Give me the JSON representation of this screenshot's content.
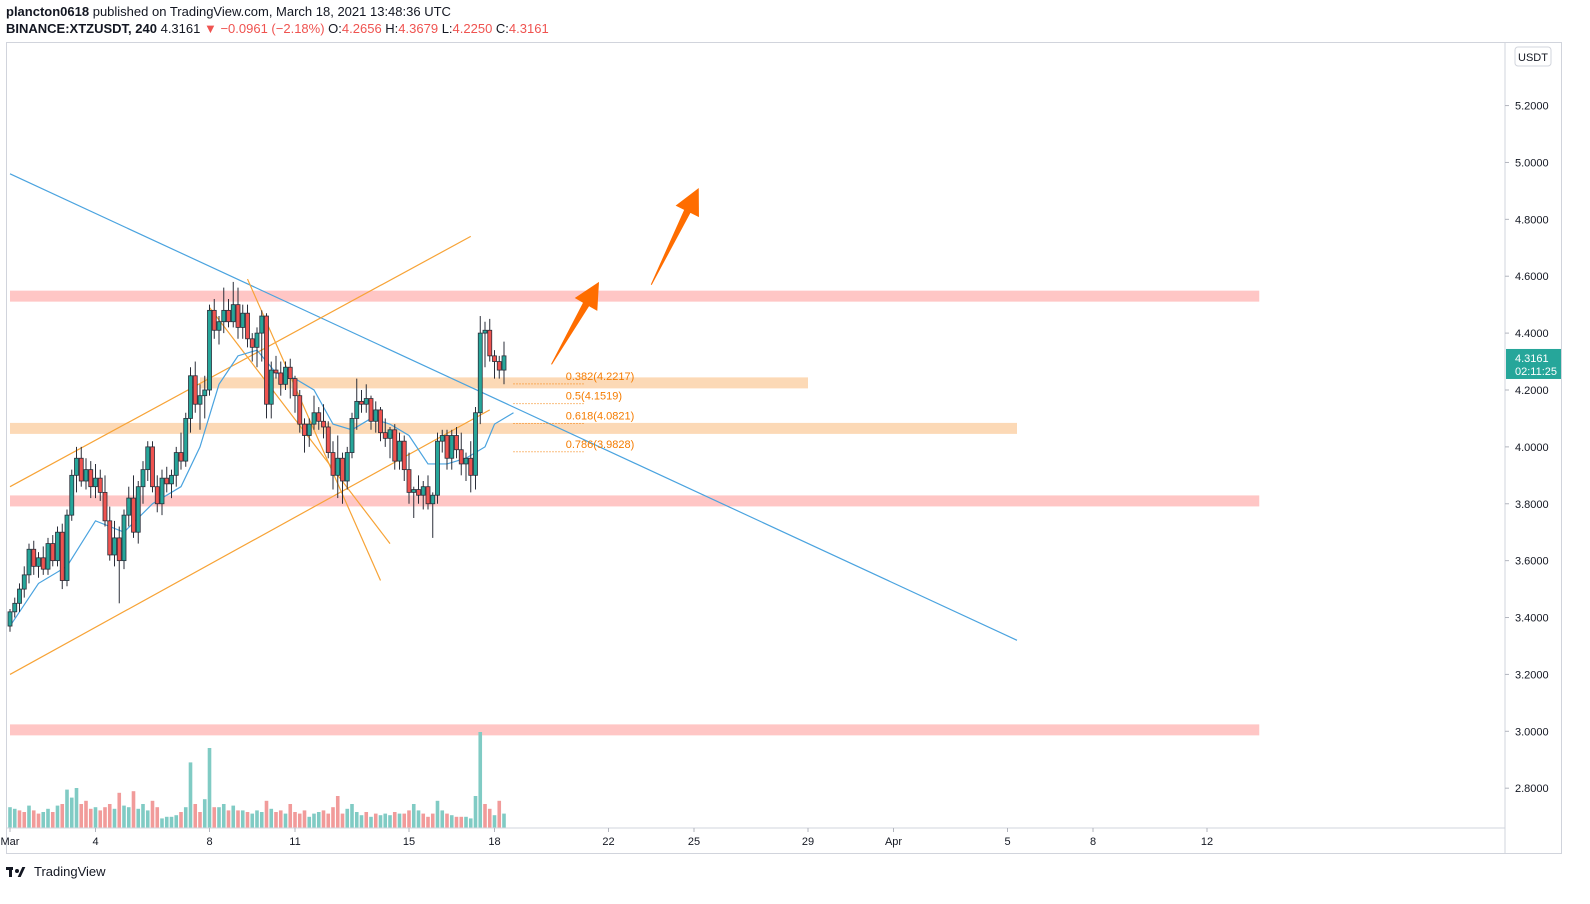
{
  "header": {
    "author": "plancton0618",
    "published_text": "published on TradingView.com, March 18, 2021 13:48:36 UTC",
    "symbol": "BINANCE:XTZUSDT, 240",
    "last": "4.3161",
    "change": "▼ −0.0961 (−2.18%)",
    "o_label": "O:",
    "o": "4.2656",
    "h_label": "H:",
    "h": "4.3679",
    "l_label": "L:",
    "l": "4.2250",
    "c_label": "C:",
    "c": "4.3161"
  },
  "price_axis": {
    "currency": "USDT",
    "current_price": "4.3161",
    "countdown": "02:11:25"
  },
  "footer": {
    "brand": "TradingView"
  },
  "colors": {
    "up": "#26a69a",
    "down": "#ef5350",
    "vol_up": "#80cbc4",
    "vol_down": "#f19b9a",
    "resistance": "#ffc6c5",
    "support": "#fcd9b6",
    "ma": "#4aa3df",
    "trend": "#4aa3df",
    "channel": "#f7a336",
    "arrow": "#ff6d00",
    "fib": "#f57c00"
  },
  "chart_data": {
    "type": "candlestick",
    "symbol": "BINANCE:XTZUSDT",
    "interval": "240",
    "y_range": [
      2.66,
      5.42
    ],
    "y_ticks": [
      "5.2000",
      "5.0000",
      "4.8000",
      "4.6000",
      "4.4000",
      "4.2000",
      "4.0000",
      "3.8000",
      "3.6000",
      "3.4000",
      "3.2000",
      "3.0000",
      "2.8000"
    ],
    "x_ticks": [
      {
        "label": "Mar",
        "index": 0
      },
      {
        "label": "4",
        "index": 18
      },
      {
        "label": "8",
        "index": 42
      },
      {
        "label": "11",
        "index": 60
      },
      {
        "label": "15",
        "index": 84
      },
      {
        "label": "18",
        "index": 102
      },
      {
        "label": "22",
        "index": 126
      },
      {
        "label": "25",
        "index": 144
      },
      {
        "label": "29",
        "index": 168
      },
      {
        "label": "Apr",
        "index": 186
      },
      {
        "label": "5",
        "index": 210
      },
      {
        "label": "8",
        "index": 228
      },
      {
        "label": "12",
        "index": 252
      }
    ],
    "candles": [
      [
        3.37,
        3.43,
        3.35,
        3.42
      ],
      [
        3.42,
        3.47,
        3.4,
        3.45
      ],
      [
        3.45,
        3.52,
        3.42,
        3.5
      ],
      [
        3.5,
        3.58,
        3.47,
        3.55
      ],
      [
        3.55,
        3.66,
        3.52,
        3.64
      ],
      [
        3.64,
        3.67,
        3.55,
        3.58
      ],
      [
        3.58,
        3.63,
        3.54,
        3.61
      ],
      [
        3.61,
        3.65,
        3.55,
        3.57
      ],
      [
        3.57,
        3.68,
        3.55,
        3.66
      ],
      [
        3.66,
        3.69,
        3.58,
        3.6
      ],
      [
        3.6,
        3.72,
        3.58,
        3.7
      ],
      [
        3.7,
        3.73,
        3.5,
        3.53
      ],
      [
        3.53,
        3.78,
        3.51,
        3.76
      ],
      [
        3.76,
        3.92,
        3.74,
        3.9
      ],
      [
        3.9,
        4.0,
        3.84,
        3.96
      ],
      [
        3.96,
        4.0,
        3.86,
        3.88
      ],
      [
        3.88,
        3.96,
        3.85,
        3.92
      ],
      [
        3.92,
        3.95,
        3.82,
        3.86
      ],
      [
        3.86,
        3.94,
        3.82,
        3.89
      ],
      [
        3.89,
        3.92,
        3.81,
        3.84
      ],
      [
        3.84,
        3.9,
        3.72,
        3.74
      ],
      [
        3.74,
        3.79,
        3.6,
        3.62
      ],
      [
        3.62,
        3.74,
        3.58,
        3.68
      ],
      [
        3.68,
        3.72,
        3.45,
        3.6
      ],
      [
        3.6,
        3.78,
        3.57,
        3.76
      ],
      [
        3.76,
        3.86,
        3.72,
        3.82
      ],
      [
        3.82,
        3.9,
        3.68,
        3.7
      ],
      [
        3.7,
        3.88,
        3.66,
        3.86
      ],
      [
        3.86,
        3.95,
        3.8,
        3.92
      ],
      [
        3.92,
        4.02,
        3.88,
        4.0
      ],
      [
        4.0,
        4.02,
        3.84,
        3.86
      ],
      [
        3.86,
        3.9,
        3.77,
        3.8
      ],
      [
        3.8,
        3.92,
        3.76,
        3.89
      ],
      [
        3.89,
        3.93,
        3.84,
        3.87
      ],
      [
        3.87,
        3.92,
        3.82,
        3.9
      ],
      [
        3.9,
        4.0,
        3.86,
        3.98
      ],
      [
        3.98,
        4.05,
        3.92,
        3.95
      ],
      [
        3.95,
        4.12,
        3.93,
        4.1
      ],
      [
        4.1,
        4.28,
        4.05,
        4.25
      ],
      [
        4.25,
        4.3,
        4.12,
        4.15
      ],
      [
        4.15,
        4.22,
        4.06,
        4.18
      ],
      [
        4.18,
        4.25,
        4.1,
        4.2
      ],
      [
        4.2,
        4.5,
        4.18,
        4.48
      ],
      [
        4.48,
        4.52,
        4.38,
        4.41
      ],
      [
        4.41,
        4.46,
        4.36,
        4.44
      ],
      [
        4.44,
        4.56,
        4.4,
        4.48
      ],
      [
        4.48,
        4.52,
        4.42,
        4.44
      ],
      [
        4.44,
        4.58,
        4.42,
        4.5
      ],
      [
        4.5,
        4.56,
        4.38,
        4.42
      ],
      [
        4.42,
        4.5,
        4.38,
        4.47
      ],
      [
        4.47,
        4.5,
        4.35,
        4.38
      ],
      [
        4.38,
        4.4,
        4.3,
        4.35
      ],
      [
        4.35,
        4.42,
        4.28,
        4.4
      ],
      [
        4.4,
        4.48,
        4.3,
        4.46
      ],
      [
        4.46,
        4.47,
        4.1,
        4.15
      ],
      [
        4.15,
        4.3,
        4.1,
        4.27
      ],
      [
        4.27,
        4.32,
        4.24,
        4.26
      ],
      [
        4.26,
        4.3,
        4.18,
        4.22
      ],
      [
        4.22,
        4.3,
        4.2,
        4.28
      ],
      [
        4.28,
        4.31,
        4.17,
        4.24
      ],
      [
        4.24,
        4.25,
        4.12,
        4.18
      ],
      [
        4.18,
        4.2,
        4.05,
        4.08
      ],
      [
        4.08,
        4.1,
        3.98,
        4.04
      ],
      [
        4.04,
        4.1,
        4.0,
        4.08
      ],
      [
        4.08,
        4.18,
        4.06,
        4.12
      ],
      [
        4.12,
        4.14,
        4.06,
        4.09
      ],
      [
        4.09,
        4.15,
        4.03,
        4.07
      ],
      [
        4.07,
        4.09,
        3.96,
        3.98
      ],
      [
        3.98,
        4.02,
        3.85,
        3.9
      ],
      [
        3.9,
        4.04,
        3.82,
        3.96
      ],
      [
        3.96,
        3.98,
        3.8,
        3.88
      ],
      [
        3.88,
        4.0,
        3.85,
        3.98
      ],
      [
        3.98,
        4.12,
        3.96,
        4.1
      ],
      [
        4.1,
        4.24,
        4.06,
        4.16
      ],
      [
        4.16,
        4.2,
        4.12,
        4.15
      ],
      [
        4.15,
        4.22,
        4.12,
        4.17
      ],
      [
        4.17,
        4.18,
        4.06,
        4.09
      ],
      [
        4.09,
        4.16,
        4.05,
        4.13
      ],
      [
        4.13,
        4.14,
        4.02,
        4.05
      ],
      [
        4.05,
        4.1,
        4.0,
        4.03
      ],
      [
        4.03,
        4.07,
        3.96,
        4.06
      ],
      [
        4.06,
        4.08,
        3.92,
        3.95
      ],
      [
        3.95,
        4.05,
        3.92,
        4.02
      ],
      [
        4.02,
        4.04,
        3.88,
        3.92
      ],
      [
        3.92,
        3.98,
        3.8,
        3.84
      ],
      [
        3.84,
        3.86,
        3.75,
        3.85
      ],
      [
        3.85,
        3.9,
        3.8,
        3.83
      ],
      [
        3.83,
        3.88,
        3.78,
        3.86
      ],
      [
        3.86,
        3.9,
        3.78,
        3.8
      ],
      [
        3.8,
        3.84,
        3.68,
        3.83
      ],
      [
        3.83,
        4.05,
        3.8,
        4.02
      ],
      [
        4.02,
        4.06,
        3.98,
        4.04
      ],
      [
        4.04,
        4.06,
        3.92,
        3.96
      ],
      [
        3.96,
        4.06,
        3.92,
        4.04
      ],
      [
        4.04,
        4.07,
        3.96,
        3.99
      ],
      [
        3.99,
        4.05,
        3.9,
        3.94
      ],
      [
        3.94,
        3.98,
        3.88,
        3.96
      ],
      [
        3.96,
        4.02,
        3.84,
        3.9
      ],
      [
        3.9,
        4.14,
        3.85,
        4.12
      ],
      [
        4.12,
        4.46,
        4.08,
        4.4
      ],
      [
        4.4,
        4.44,
        4.28,
        4.41
      ],
      [
        4.41,
        4.45,
        4.3,
        4.32
      ],
      [
        4.32,
        4.34,
        4.24,
        4.3
      ],
      [
        4.3,
        4.32,
        4.24,
        4.27
      ],
      [
        4.27,
        4.37,
        4.22,
        4.32
      ]
    ],
    "volumes": [
      [
        0.26,
        "u"
      ],
      [
        0.24,
        "u"
      ],
      [
        0.22,
        "d"
      ],
      [
        0.2,
        "d"
      ],
      [
        0.28,
        "u"
      ],
      [
        0.22,
        "d"
      ],
      [
        0.18,
        "d"
      ],
      [
        0.2,
        "u"
      ],
      [
        0.24,
        "u"
      ],
      [
        0.2,
        "d"
      ],
      [
        0.28,
        "u"
      ],
      [
        0.3,
        "d"
      ],
      [
        0.48,
        "u"
      ],
      [
        0.38,
        "u"
      ],
      [
        0.5,
        "u"
      ],
      [
        0.3,
        "d"
      ],
      [
        0.34,
        "d"
      ],
      [
        0.24,
        "d"
      ],
      [
        0.26,
        "u"
      ],
      [
        0.22,
        "d"
      ],
      [
        0.26,
        "d"
      ],
      [
        0.3,
        "d"
      ],
      [
        0.24,
        "u"
      ],
      [
        0.44,
        "d"
      ],
      [
        0.28,
        "u"
      ],
      [
        0.26,
        "u"
      ],
      [
        0.46,
        "d"
      ],
      [
        0.24,
        "u"
      ],
      [
        0.3,
        "u"
      ],
      [
        0.22,
        "u"
      ],
      [
        0.34,
        "d"
      ],
      [
        0.26,
        "d"
      ],
      [
        0.12,
        "u"
      ],
      [
        0.14,
        "u"
      ],
      [
        0.14,
        "u"
      ],
      [
        0.16,
        "u"
      ],
      [
        0.2,
        "d"
      ],
      [
        0.26,
        "u"
      ],
      [
        0.82,
        "u"
      ],
      [
        0.3,
        "d"
      ],
      [
        0.2,
        "d"
      ],
      [
        0.36,
        "u"
      ],
      [
        1.0,
        "u"
      ],
      [
        0.26,
        "d"
      ],
      [
        0.26,
        "u"
      ],
      [
        0.3,
        "u"
      ],
      [
        0.22,
        "d"
      ],
      [
        0.28,
        "u"
      ],
      [
        0.22,
        "d"
      ],
      [
        0.22,
        "u"
      ],
      [
        0.2,
        "d"
      ],
      [
        0.18,
        "u"
      ],
      [
        0.22,
        "u"
      ],
      [
        0.2,
        "u"
      ],
      [
        0.34,
        "d"
      ],
      [
        0.24,
        "u"
      ],
      [
        0.2,
        "d"
      ],
      [
        0.22,
        "d"
      ],
      [
        0.18,
        "u"
      ],
      [
        0.3,
        "d"
      ],
      [
        0.2,
        "d"
      ],
      [
        0.18,
        "d"
      ],
      [
        0.22,
        "d"
      ],
      [
        0.14,
        "u"
      ],
      [
        0.18,
        "u"
      ],
      [
        0.2,
        "u"
      ],
      [
        0.22,
        "d"
      ],
      [
        0.18,
        "d"
      ],
      [
        0.26,
        "d"
      ],
      [
        0.4,
        "d"
      ],
      [
        0.18,
        "d"
      ],
      [
        0.24,
        "u"
      ],
      [
        0.3,
        "u"
      ],
      [
        0.2,
        "u"
      ],
      [
        0.16,
        "u"
      ],
      [
        0.2,
        "d"
      ],
      [
        0.14,
        "u"
      ],
      [
        0.18,
        "d"
      ],
      [
        0.16,
        "u"
      ],
      [
        0.18,
        "u"
      ],
      [
        0.16,
        "u"
      ],
      [
        0.2,
        "d"
      ],
      [
        0.18,
        "u"
      ],
      [
        0.18,
        "d"
      ],
      [
        0.22,
        "d"
      ],
      [
        0.3,
        "u"
      ],
      [
        0.22,
        "u"
      ],
      [
        0.18,
        "d"
      ],
      [
        0.14,
        "d"
      ],
      [
        0.18,
        "d"
      ],
      [
        0.34,
        "u"
      ],
      [
        0.22,
        "u"
      ],
      [
        0.18,
        "d"
      ],
      [
        0.16,
        "u"
      ],
      [
        0.14,
        "d"
      ],
      [
        0.14,
        "d"
      ],
      [
        0.14,
        "u"
      ],
      [
        0.12,
        "u"
      ],
      [
        0.4,
        "u"
      ],
      [
        1.2,
        "u"
      ],
      [
        0.3,
        "d"
      ],
      [
        0.24,
        "d"
      ],
      [
        0.16,
        "u"
      ],
      [
        0.34,
        "d"
      ],
      [
        0.18,
        "u"
      ]
    ],
    "moving_average": [
      [
        0,
        3.37
      ],
      [
        6,
        3.52
      ],
      [
        12,
        3.58
      ],
      [
        18,
        3.74
      ],
      [
        24,
        3.7
      ],
      [
        30,
        3.8
      ],
      [
        36,
        3.86
      ],
      [
        40,
        4.0
      ],
      [
        44,
        4.22
      ],
      [
        48,
        4.32
      ],
      [
        52,
        4.34
      ],
      [
        56,
        4.26
      ],
      [
        60,
        4.24
      ],
      [
        64,
        4.2
      ],
      [
        68,
        4.08
      ],
      [
        72,
        4.06
      ],
      [
        76,
        4.1
      ],
      [
        80,
        4.08
      ],
      [
        84,
        4.04
      ],
      [
        88,
        3.94
      ],
      [
        92,
        3.94
      ],
      [
        96,
        3.96
      ],
      [
        100,
        4.0
      ],
      [
        102,
        4.08
      ],
      [
        106,
        4.12
      ]
    ],
    "horizontal_zones": [
      {
        "type": "resistance",
        "price": 4.53,
        "start": 0,
        "end": 263
      },
      {
        "type": "support",
        "price": 4.225,
        "start": 40,
        "end": 168
      },
      {
        "type": "support",
        "price": 4.065,
        "start": 0,
        "end": 212
      },
      {
        "type": "resistance",
        "price": 3.81,
        "start": 0,
        "end": 263
      },
      {
        "type": "resistance",
        "price": 3.005,
        "start": 0,
        "end": 263
      }
    ],
    "trendline": [
      [
        0,
        4.96
      ],
      [
        212,
        3.32
      ]
    ],
    "channel_lines": [
      [
        [
          0,
          3.86
        ],
        [
          97,
          4.74
        ]
      ],
      [
        [
          0,
          3.2
        ],
        [
          101,
          4.13
        ]
      ],
      [
        [
          42,
          4.49
        ],
        [
          80,
          3.66
        ]
      ],
      [
        [
          50,
          4.59
        ],
        [
          78,
          3.53
        ]
      ]
    ],
    "fib_levels": [
      {
        "label": "0.382(4.2217)",
        "price": 4.2217
      },
      {
        "label": "0.5(4.1519)",
        "price": 4.1519
      },
      {
        "label": "0.618(4.0821)",
        "price": 4.0821
      },
      {
        "label": "0.786(3.9828)",
        "price": 3.9828
      }
    ],
    "arrows": [
      {
        "from": [
          114,
          4.29
        ],
        "to": [
          124,
          4.58
        ]
      },
      {
        "from": [
          135,
          4.57
        ],
        "to": [
          145,
          4.91
        ]
      }
    ]
  }
}
